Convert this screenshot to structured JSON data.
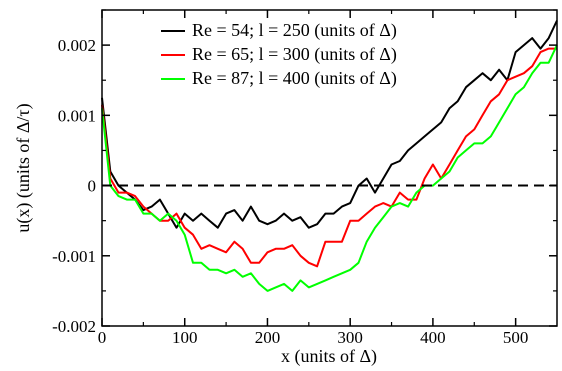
{
  "chart_data": {
    "type": "line",
    "xlabel": "x (units of Δ)",
    "ylabel": "u(x) (units of Δ/τ)",
    "xlim": [
      0,
      550
    ],
    "ylim": [
      -0.002,
      0.0025
    ],
    "x_ticks": [
      0,
      100,
      200,
      300,
      400,
      500
    ],
    "x_tick_labels": [
      "0",
      "100",
      "200",
      "300",
      "400",
      "500"
    ],
    "y_ticks": [
      -0.002,
      -0.001,
      0,
      0.001,
      0.002
    ],
    "y_tick_labels": [
      "-0.002",
      "-0.001",
      "0",
      "0.001",
      "0.002"
    ],
    "reference_line": {
      "y": 0,
      "style": "dashed",
      "color": "#000000"
    },
    "grid": false,
    "legend_position": "top-right",
    "series": [
      {
        "name": "Re = 54; l = 250 (units of Δ)",
        "color": "#000000",
        "x": [
          0,
          10,
          20,
          30,
          40,
          50,
          60,
          70,
          80,
          90,
          100,
          110,
          120,
          130,
          140,
          150,
          160,
          170,
          180,
          190,
          200,
          210,
          220,
          230,
          240,
          250,
          260,
          270,
          280,
          290,
          300,
          310,
          320,
          330,
          340,
          350,
          360,
          370,
          380,
          390,
          400,
          410,
          420,
          430,
          440,
          450,
          460,
          470,
          480,
          490,
          500,
          510,
          520,
          530,
          540,
          550
        ],
        "y": [
          0.00125,
          0.0002,
          0.0,
          -0.0001,
          -0.0002,
          -0.00035,
          -0.0003,
          -0.0002,
          -0.0004,
          -0.0006,
          -0.0004,
          -0.0005,
          -0.0004,
          -0.0005,
          -0.0006,
          -0.0004,
          -0.00035,
          -0.0005,
          -0.0003,
          -0.0005,
          -0.00055,
          -0.0005,
          -0.0004,
          -0.0005,
          -0.00045,
          -0.0006,
          -0.00055,
          -0.0004,
          -0.0004,
          -0.0003,
          -0.00025,
          0.0,
          0.0001,
          -0.0001,
          0.0001,
          0.0003,
          0.00035,
          0.0005,
          0.0006,
          0.0007,
          0.0008,
          0.0009,
          0.0011,
          0.0012,
          0.0014,
          0.0015,
          0.0016,
          0.0015,
          0.00165,
          0.0015,
          0.0019,
          0.002,
          0.0021,
          0.00195,
          0.0021,
          0.00235
        ]
      },
      {
        "name": "Re = 65; l = 300 (units of Δ)",
        "color": "#ff0000",
        "x": [
          0,
          10,
          20,
          30,
          40,
          50,
          60,
          70,
          80,
          90,
          100,
          110,
          120,
          130,
          140,
          150,
          160,
          170,
          180,
          190,
          200,
          210,
          220,
          230,
          240,
          250,
          260,
          270,
          280,
          290,
          300,
          310,
          320,
          330,
          340,
          350,
          360,
          370,
          380,
          390,
          400,
          410,
          420,
          430,
          440,
          450,
          460,
          470,
          480,
          490,
          500,
          510,
          520,
          530,
          540,
          550
        ],
        "y": [
          0.00115,
          0.0001,
          -0.0001,
          -0.0001,
          -0.00015,
          -0.0003,
          -0.0004,
          -0.0005,
          -0.0005,
          -0.0004,
          -0.0006,
          -0.0007,
          -0.0009,
          -0.00085,
          -0.0009,
          -0.00095,
          -0.0008,
          -0.0009,
          -0.0011,
          -0.0011,
          -0.00095,
          -0.0009,
          -0.0009,
          -0.00085,
          -0.001,
          -0.0011,
          -0.00115,
          -0.0008,
          -0.0008,
          -0.0008,
          -0.0005,
          -0.0005,
          -0.0004,
          -0.0003,
          -0.00025,
          -0.0003,
          -0.0001,
          -0.0002,
          -0.0002,
          0.0001,
          0.0003,
          0.0001,
          0.0003,
          0.0005,
          0.0007,
          0.0008,
          0.001,
          0.0012,
          0.0013,
          0.0015,
          0.00155,
          0.0016,
          0.0017,
          0.0019,
          0.00195,
          0.00195
        ]
      },
      {
        "name": "Re = 87; l = 400 (units of Δ)",
        "color": "#00ff00",
        "x": [
          0,
          10,
          20,
          30,
          40,
          50,
          60,
          70,
          80,
          90,
          100,
          110,
          120,
          130,
          140,
          150,
          160,
          170,
          180,
          190,
          200,
          210,
          220,
          230,
          240,
          250,
          260,
          270,
          280,
          290,
          300,
          310,
          320,
          330,
          340,
          350,
          360,
          370,
          380,
          390,
          400,
          410,
          420,
          430,
          440,
          450,
          460,
          470,
          480,
          490,
          500,
          510,
          520,
          530,
          540,
          550
        ],
        "y": [
          0.0011,
          0.0,
          -0.00015,
          -0.0002,
          -0.0002,
          -0.0004,
          -0.0004,
          -0.0005,
          -0.0004,
          -0.0005,
          -0.0007,
          -0.0011,
          -0.0011,
          -0.0012,
          -0.0012,
          -0.00125,
          -0.0012,
          -0.0013,
          -0.00125,
          -0.0014,
          -0.0015,
          -0.00145,
          -0.0014,
          -0.0015,
          -0.00135,
          -0.00145,
          -0.0014,
          -0.00135,
          -0.0013,
          -0.00125,
          -0.0012,
          -0.0011,
          -0.0008,
          -0.0006,
          -0.00045,
          -0.0003,
          -0.00025,
          -0.0003,
          -0.0001,
          0.0,
          0.0,
          0.0001,
          0.0002,
          0.0004,
          0.0005,
          0.0006,
          0.0006,
          0.0007,
          0.0009,
          0.0011,
          0.0013,
          0.0014,
          0.0016,
          0.00175,
          0.00175,
          0.002
        ]
      }
    ]
  }
}
